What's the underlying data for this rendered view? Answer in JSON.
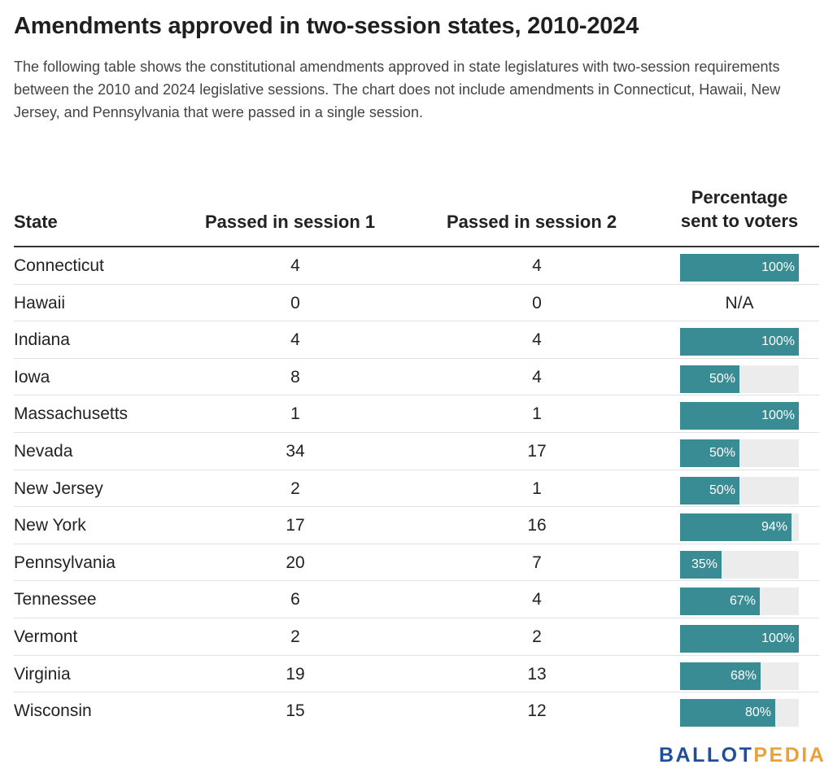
{
  "title": "Amendments approved in two-session states, 2010-2024",
  "subtitle": "The following table shows the constitutional amendments approved in state legislatures with two-session requirements between the 2010 and 2024 legislative sessions. The chart does not include amendments in Connecticut, Hawaii, New Jersey, and Pennsylvania that were passed in a single session.",
  "logo": {
    "part1": "BALLOT",
    "part2": "PEDIA"
  },
  "colors": {
    "bar": "#3a8c94",
    "track": "#ececec",
    "logo_blue": "#1f4e9c",
    "logo_orange": "#e9a23b"
  },
  "chart_data": {
    "type": "table",
    "columns": [
      "State",
      "Passed in session 1",
      "Passed in session 2",
      "Percentage sent to voters"
    ],
    "rows": [
      {
        "state": "Connecticut",
        "s1": 4,
        "s2": 4,
        "pct": 100,
        "pct_label": "100%"
      },
      {
        "state": "Hawaii",
        "s1": 0,
        "s2": 0,
        "pct": null,
        "pct_label": "N/A"
      },
      {
        "state": "Indiana",
        "s1": 4,
        "s2": 4,
        "pct": 100,
        "pct_label": "100%"
      },
      {
        "state": "Iowa",
        "s1": 8,
        "s2": 4,
        "pct": 50,
        "pct_label": "50%"
      },
      {
        "state": "Massachusetts",
        "s1": 1,
        "s2": 1,
        "pct": 100,
        "pct_label": "100%"
      },
      {
        "state": "Nevada",
        "s1": 34,
        "s2": 17,
        "pct": 50,
        "pct_label": "50%"
      },
      {
        "state": "New Jersey",
        "s1": 2,
        "s2": 1,
        "pct": 50,
        "pct_label": "50%"
      },
      {
        "state": "New York",
        "s1": 17,
        "s2": 16,
        "pct": 94,
        "pct_label": "94%"
      },
      {
        "state": "Pennsylvania",
        "s1": 20,
        "s2": 7,
        "pct": 35,
        "pct_label": "35%"
      },
      {
        "state": "Tennessee",
        "s1": 6,
        "s2": 4,
        "pct": 67,
        "pct_label": "67%"
      },
      {
        "state": "Vermont",
        "s1": 2,
        "s2": 2,
        "pct": 100,
        "pct_label": "100%"
      },
      {
        "state": "Virginia",
        "s1": 19,
        "s2": 13,
        "pct": 68,
        "pct_label": "68%"
      },
      {
        "state": "Wisconsin",
        "s1": 15,
        "s2": 12,
        "pct": 80,
        "pct_label": "80%"
      }
    ]
  }
}
